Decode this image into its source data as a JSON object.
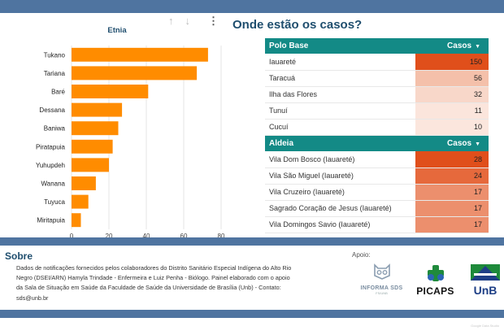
{
  "chart_data": {
    "type": "bar",
    "orientation": "horizontal",
    "title": "Etnia",
    "categories": [
      "Tukano",
      "Tariana",
      "Baré",
      "Dessana",
      "Baniwa",
      "Piratapuia",
      "Yuhupdeh",
      "Wanana",
      "Tuyuca",
      "Miritapuia"
    ],
    "values": [
      73,
      67,
      41,
      27,
      25,
      22,
      20,
      13,
      9,
      5
    ],
    "xlim": [
      0,
      80
    ],
    "xticks": [
      "0",
      "20",
      "40",
      "60",
      "80"
    ],
    "bar_color": "#ff8c00",
    "grid": true
  },
  "header": {
    "title": "Onde estão os casos?"
  },
  "polo_table": {
    "col_name": "Polo Base",
    "col_value": "Casos",
    "rows": [
      {
        "name": "Iauareté",
        "value": "150",
        "color": "#e04f1b"
      },
      {
        "name": "Taracuá",
        "value": "56",
        "color": "#f4c0aa"
      },
      {
        "name": "Ilha das Flores",
        "value": "32",
        "color": "#f8d7c9"
      },
      {
        "name": "Tunuí",
        "value": "11",
        "color": "#fbe5dc"
      },
      {
        "name": "Cucuí",
        "value": "10",
        "color": "#fbe6dd"
      }
    ]
  },
  "aldeia_table": {
    "col_name": "Aldeia",
    "col_value": "Casos",
    "rows": [
      {
        "name": "Vila Dom Bosco (Iauareté)",
        "value": "28",
        "color": "#e04f1b"
      },
      {
        "name": "Vila São Miguel (Iauareté)",
        "value": "24",
        "color": "#e6693c"
      },
      {
        "name": "Vila Cruzeiro (Iauareté)",
        "value": "17",
        "color": "#ec8f6d"
      },
      {
        "name": "Sagrado Coração de Jesus (Iauareté)",
        "value": "17",
        "color": "#ec8f6d"
      },
      {
        "name": "Vila Domingos Savio (Iauareté)",
        "value": "17",
        "color": "#ec8f6d"
      }
    ]
  },
  "footer": {
    "sobre_title": "Sobre",
    "description": "Dados de notificações fornecidos pelos colaboradores do Distrito Sanitário Especial Indígena do Alto Rio Negro (DSEI/ARN) Hamyla Trindade - Enfermeira e Luiz Penha - Biólogo. Painel elaborado com o apoio da Sala de Situação em Saúde da Faculdade de Saúde da Universidade de Brasília (Unb) - Contato: sds@unb.br",
    "apoio_label": "Apoio:",
    "logo_informa": "INFORMA SDS",
    "logo_informa_sub": "FS/UNB",
    "logo_picaps": "PICAPS",
    "logo_unb": "UnB",
    "credit": "Google Data Studio"
  },
  "toolbar": {
    "sort_asc_icon": "arrow-up-icon",
    "sort_desc_icon": "arrow-down-icon",
    "menu_icon": "more-vert-icon"
  }
}
